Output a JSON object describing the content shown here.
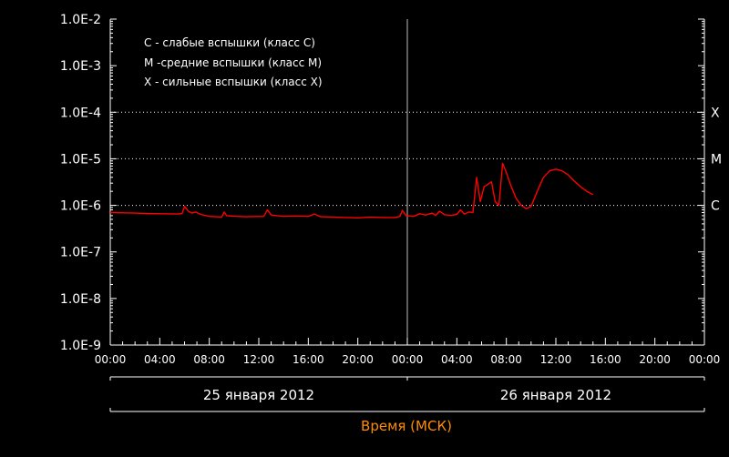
{
  "chart_data": {
    "type": "line",
    "y_scale": "log",
    "ylim": [
      1e-09,
      0.01
    ],
    "y_ticks": [
      {
        "value": 0.01,
        "label": "1.0E-2"
      },
      {
        "value": 0.001,
        "label": "1.0E-3"
      },
      {
        "value": 0.0001,
        "label": "1.0E-4"
      },
      {
        "value": 1e-05,
        "label": "1.0E-5"
      },
      {
        "value": 1e-06,
        "label": "1.0E-6"
      },
      {
        "value": 1e-07,
        "label": "1.0E-7"
      },
      {
        "value": 1e-08,
        "label": "1.0E-8"
      },
      {
        "value": 1e-09,
        "label": "1.0E-9"
      }
    ],
    "xlim_hours": [
      0,
      48
    ],
    "x_ticks": [
      {
        "value": 0,
        "label": "00:00"
      },
      {
        "value": 4,
        "label": "04:00"
      },
      {
        "value": 8,
        "label": "08:00"
      },
      {
        "value": 12,
        "label": "12:00"
      },
      {
        "value": 16,
        "label": "16:00"
      },
      {
        "value": 20,
        "label": "20:00"
      },
      {
        "value": 24,
        "label": "00:00"
      },
      {
        "value": 28,
        "label": "04:00"
      },
      {
        "value": 32,
        "label": "08:00"
      },
      {
        "value": 36,
        "label": "12:00"
      },
      {
        "value": 40,
        "label": "16:00"
      },
      {
        "value": 44,
        "label": "20:00"
      },
      {
        "value": 48,
        "label": "00:00"
      }
    ],
    "class_levels": [
      {
        "value": 0.0001,
        "label": "X"
      },
      {
        "value": 1e-05,
        "label": "M"
      },
      {
        "value": 1e-06,
        "label": "C"
      }
    ],
    "midnight_line_hours": 24,
    "dates": [
      {
        "start": 0,
        "end": 24,
        "label": "25 января 2012"
      },
      {
        "start": 24,
        "end": 48,
        "label": "26 января 2012"
      }
    ],
    "xlabel": "Время (МСК)",
    "legend": [
      "C - слабые вспышки (класс С)",
      "M -средние вспышки (класс М)",
      "X - сильные вспышки (класс X)"
    ],
    "series": [
      {
        "color": "#ff0000",
        "points": [
          [
            0,
            7e-07
          ],
          [
            1,
            6.9e-07
          ],
          [
            2,
            6.8e-07
          ],
          [
            3,
            6.7e-07
          ],
          [
            4,
            6.6e-07
          ],
          [
            5.5,
            6.5e-07
          ],
          [
            5.8,
            6.7e-07
          ],
          [
            6.0,
            9.5e-07
          ],
          [
            6.3,
            7.5e-07
          ],
          [
            6.6,
            6.8e-07
          ],
          [
            6.9,
            7.2e-07
          ],
          [
            7.3,
            6.4e-07
          ],
          [
            8,
            5.8e-07
          ],
          [
            9.0,
            5.6e-07
          ],
          [
            9.2,
            7.2e-07
          ],
          [
            9.4,
            6e-07
          ],
          [
            10.2,
            5.8e-07
          ],
          [
            11,
            5.7e-07
          ],
          [
            12.4,
            5.8e-07
          ],
          [
            12.7,
            8e-07
          ],
          [
            13.0,
            6.2e-07
          ],
          [
            14,
            5.8e-07
          ],
          [
            15,
            5.9e-07
          ],
          [
            16,
            5.8e-07
          ],
          [
            16.5,
            6.5e-07
          ],
          [
            17,
            5.7e-07
          ],
          [
            18,
            5.6e-07
          ],
          [
            19,
            5.5e-07
          ],
          [
            20,
            5.4e-07
          ],
          [
            21,
            5.6e-07
          ],
          [
            22,
            5.5e-07
          ],
          [
            23,
            5.5e-07
          ],
          [
            23.4,
            5.8e-07
          ],
          [
            23.6,
            7.8e-07
          ],
          [
            23.9,
            6e-07
          ],
          [
            24.5,
            5.8e-07
          ],
          [
            25.0,
            6.6e-07
          ],
          [
            25.5,
            6.2e-07
          ],
          [
            26.0,
            6.8e-07
          ],
          [
            26.3,
            6.1e-07
          ],
          [
            26.6,
            7.5e-07
          ],
          [
            27.0,
            6.3e-07
          ],
          [
            27.5,
            6.1e-07
          ],
          [
            28.0,
            6.4e-07
          ],
          [
            28.3,
            8e-07
          ],
          [
            28.6,
            6.5e-07
          ],
          [
            29.0,
            7.2e-07
          ],
          [
            29.3,
            7e-07
          ],
          [
            29.6,
            4e-06
          ],
          [
            29.9,
            1.2e-06
          ],
          [
            30.2,
            2.5e-06
          ],
          [
            30.8,
            3.2e-06
          ],
          [
            31.1,
            1.2e-06
          ],
          [
            31.4,
            1e-06
          ],
          [
            31.7,
            8e-06
          ],
          [
            32.0,
            5e-06
          ],
          [
            32.4,
            2.5e-06
          ],
          [
            32.8,
            1.4e-06
          ],
          [
            33.2,
            1e-06
          ],
          [
            33.6,
            8.5e-07
          ],
          [
            34.0,
            9.5e-07
          ],
          [
            34.5,
            2e-06
          ],
          [
            35.0,
            4e-06
          ],
          [
            35.5,
            5.5e-06
          ],
          [
            36.0,
            6e-06
          ],
          [
            36.5,
            5.5e-06
          ],
          [
            37.0,
            4.5e-06
          ],
          [
            37.5,
            3.3e-06
          ],
          [
            38.0,
            2.5e-06
          ],
          [
            38.5,
            2e-06
          ],
          [
            39.0,
            1.7e-06
          ]
        ]
      }
    ]
  }
}
